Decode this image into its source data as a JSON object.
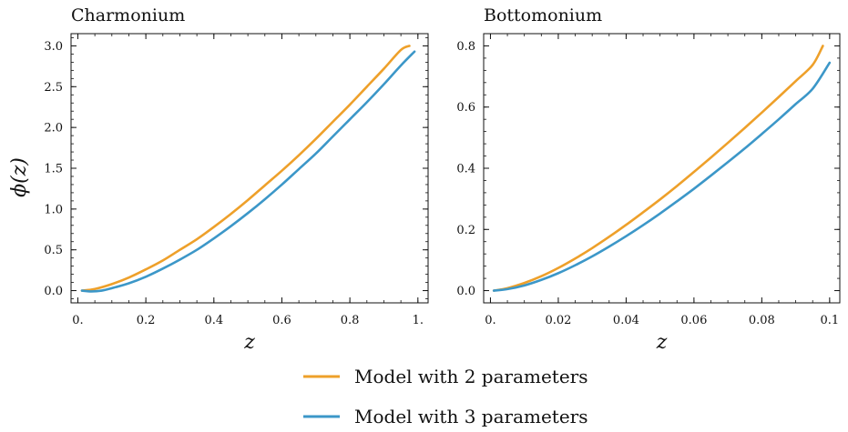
{
  "figure": {
    "ylabel": "ϕ(z)"
  },
  "legend": {
    "placement": "bottom-center",
    "entries": [
      {
        "label": "Model with 2 parameters",
        "color": "#eea02a"
      },
      {
        "label": "Model with 3 parameters",
        "color": "#3c97c8"
      }
    ]
  },
  "chart_data": [
    {
      "type": "line",
      "title": "Charmonium",
      "xlabel": "z",
      "ylabel": "ϕ(z)",
      "xlim": [
        -0.02,
        1.03
      ],
      "ylim": [
        -0.15,
        3.15
      ],
      "xticks": [
        0,
        0.2,
        0.4,
        0.6,
        0.8,
        1.0
      ],
      "xtick_labels": [
        "0.",
        "0.2",
        "0.4",
        "0.6",
        "0.8",
        "1."
      ],
      "yticks": [
        0,
        0.5,
        1.0,
        1.5,
        2.0,
        2.5,
        3.0
      ],
      "ytick_labels": [
        "0.0",
        "0.5",
        "1.0",
        "1.5",
        "2.0",
        "2.5",
        "3.0"
      ],
      "grid": false,
      "series": [
        {
          "name": "Model with 2 parameters",
          "color": "#eea02a",
          "x": [
            0.012,
            0.05,
            0.1,
            0.15,
            0.2,
            0.25,
            0.3,
            0.35,
            0.4,
            0.45,
            0.5,
            0.55,
            0.6,
            0.65,
            0.7,
            0.75,
            0.8,
            0.85,
            0.9,
            0.95,
            0.975
          ],
          "y": [
            0.0,
            0.02,
            0.08,
            0.16,
            0.26,
            0.37,
            0.5,
            0.63,
            0.78,
            0.94,
            1.11,
            1.29,
            1.47,
            1.66,
            1.86,
            2.07,
            2.28,
            2.5,
            2.72,
            2.95,
            3.0
          ]
        },
        {
          "name": "Model with 3 parameters",
          "color": "#3c97c8",
          "x": [
            0.012,
            0.04,
            0.07,
            0.1,
            0.15,
            0.2,
            0.25,
            0.3,
            0.35,
            0.4,
            0.45,
            0.5,
            0.55,
            0.6,
            0.65,
            0.7,
            0.75,
            0.8,
            0.85,
            0.9,
            0.95,
            0.99
          ],
          "y": [
            0.0,
            -0.01,
            0.0,
            0.03,
            0.09,
            0.17,
            0.27,
            0.38,
            0.5,
            0.64,
            0.79,
            0.95,
            1.12,
            1.3,
            1.49,
            1.68,
            1.89,
            2.1,
            2.31,
            2.53,
            2.76,
            2.93
          ]
        }
      ]
    },
    {
      "type": "line",
      "title": "Bottomonium",
      "xlabel": "z",
      "ylabel": "",
      "xlim": [
        -0.002,
        0.103
      ],
      "ylim": [
        -0.04,
        0.84
      ],
      "xticks": [
        0,
        0.02,
        0.04,
        0.06,
        0.08,
        0.1
      ],
      "xtick_labels": [
        "0.",
        "0.02",
        "0.04",
        "0.06",
        "0.08",
        "0.1"
      ],
      "yticks": [
        0,
        0.2,
        0.4,
        0.6,
        0.8
      ],
      "ytick_labels": [
        "0.0",
        "0.2",
        "0.4",
        "0.6",
        "0.8"
      ],
      "grid": false,
      "series": [
        {
          "name": "Model with 2 parameters",
          "color": "#eea02a",
          "x": [
            0.001,
            0.005,
            0.01,
            0.015,
            0.02,
            0.025,
            0.03,
            0.035,
            0.04,
            0.045,
            0.05,
            0.055,
            0.06,
            0.065,
            0.07,
            0.075,
            0.08,
            0.085,
            0.09,
            0.095,
            0.098
          ],
          "y": [
            0.0,
            0.008,
            0.025,
            0.047,
            0.074,
            0.105,
            0.139,
            0.176,
            0.215,
            0.256,
            0.298,
            0.342,
            0.388,
            0.435,
            0.483,
            0.532,
            0.582,
            0.633,
            0.685,
            0.738,
            0.8
          ]
        },
        {
          "name": "Model with 3 parameters",
          "color": "#3c97c8",
          "x": [
            0.001,
            0.005,
            0.01,
            0.015,
            0.02,
            0.025,
            0.03,
            0.035,
            0.04,
            0.045,
            0.05,
            0.055,
            0.06,
            0.065,
            0.07,
            0.075,
            0.08,
            0.085,
            0.09,
            0.095,
            0.1
          ],
          "y": [
            0.0,
            0.005,
            0.017,
            0.035,
            0.057,
            0.083,
            0.112,
            0.144,
            0.178,
            0.214,
            0.252,
            0.292,
            0.333,
            0.376,
            0.42,
            0.465,
            0.512,
            0.56,
            0.61,
            0.66,
            0.745
          ]
        }
      ]
    }
  ]
}
